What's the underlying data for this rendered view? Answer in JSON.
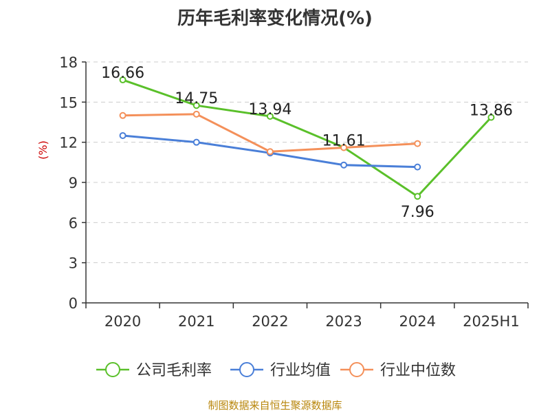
{
  "title": "历年毛利率变化情况(%)",
  "source": "制图数据来自恒生聚源数据库",
  "colors": {
    "company": "#5ac02a",
    "industry_avg": "#4a7fd8",
    "industry_median": "#f4905a",
    "axis": "#333333",
    "grid": "#cccccc",
    "unit": "#cc0000"
  },
  "chart_data": {
    "type": "line",
    "title": "历年毛利率变化情况(%)",
    "ylabel": "(%)",
    "xlabel": "",
    "categories": [
      "2020",
      "2021",
      "2022",
      "2023",
      "2024",
      "2025H1"
    ],
    "ylim": [
      0,
      18
    ],
    "yticks": [
      0,
      3,
      6,
      9,
      12,
      15,
      18
    ],
    "grid": true,
    "legend_position": "bottom",
    "series": [
      {
        "name": "公司毛利率",
        "color": "#5ac02a",
        "values": [
          16.66,
          14.75,
          13.94,
          11.61,
          7.96,
          13.86
        ],
        "labels": [
          "16.66",
          "14.75",
          "13.94",
          "11.61",
          "7.96",
          "13.86"
        ]
      },
      {
        "name": "行业均值",
        "color": "#4a7fd8",
        "values": [
          12.5,
          12.0,
          11.2,
          10.3,
          10.15,
          null
        ]
      },
      {
        "name": "行业中位数",
        "color": "#f4905a",
        "values": [
          14.0,
          14.1,
          11.3,
          11.6,
          11.9,
          null
        ]
      }
    ]
  }
}
